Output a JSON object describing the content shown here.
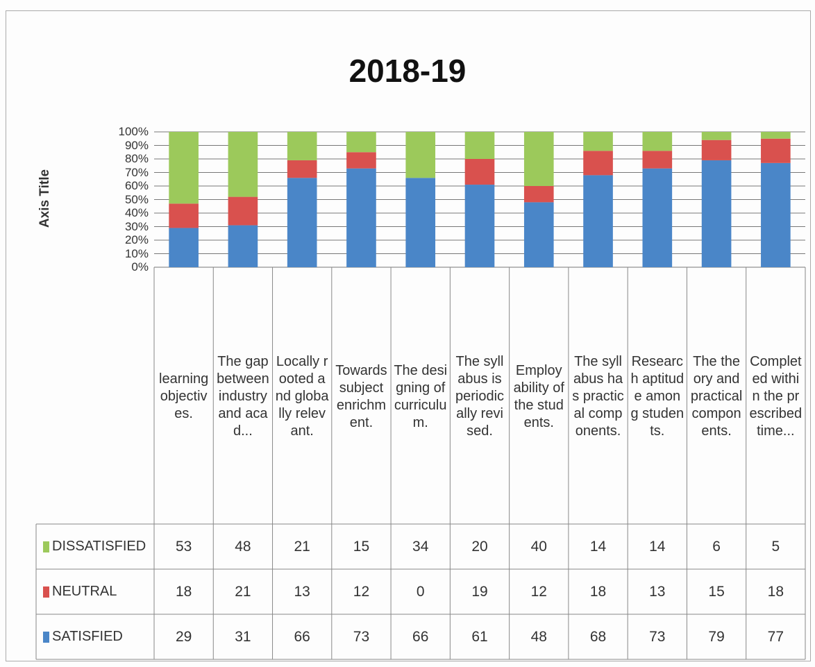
{
  "chart_data": {
    "type": "stacked_bar_100",
    "title": "2018-19",
    "y_axis_title": "Axis Title",
    "categories": [
      "learning objectives.",
      "The gap between industry and acad...",
      "Locally rooted and globally relevant.",
      "Towards subject enrichment.",
      "The designing of curriculum.",
      "The syllabus is periodically revised.",
      "Employability of the students.",
      "The syllabus has practical components.",
      "Research aptitude among students.",
      "The theory and practical components.",
      "Completed within the prescribed time..."
    ],
    "series": [
      {
        "name": "SATISFIED",
        "color": "#4a86c8",
        "values": [
          29,
          31,
          66,
          73,
          66,
          61,
          48,
          68,
          73,
          79,
          77
        ]
      },
      {
        "name": "NEUTRAL",
        "color": "#d9514e",
        "values": [
          18,
          21,
          13,
          12,
          0,
          19,
          12,
          18,
          13,
          15,
          18
        ]
      },
      {
        "name": "DISSATISFIED",
        "color": "#9cc95b",
        "values": [
          53,
          48,
          21,
          15,
          34,
          20,
          40,
          14,
          14,
          6,
          5
        ]
      }
    ],
    "ylim": [
      0,
      100
    ],
    "yticks": [
      {
        "value": 0,
        "label": "0%"
      },
      {
        "value": 10,
        "label": "10%"
      },
      {
        "value": 20,
        "label": "20%"
      },
      {
        "value": 30,
        "label": "30%"
      },
      {
        "value": 40,
        "label": "40%"
      },
      {
        "value": 50,
        "label": "50%"
      },
      {
        "value": 60,
        "label": "60%"
      },
      {
        "value": 70,
        "label": "70%"
      },
      {
        "value": 80,
        "label": "80%"
      },
      {
        "value": 90,
        "label": "90%"
      },
      {
        "value": 100,
        "label": "100%"
      }
    ],
    "grid": true
  }
}
